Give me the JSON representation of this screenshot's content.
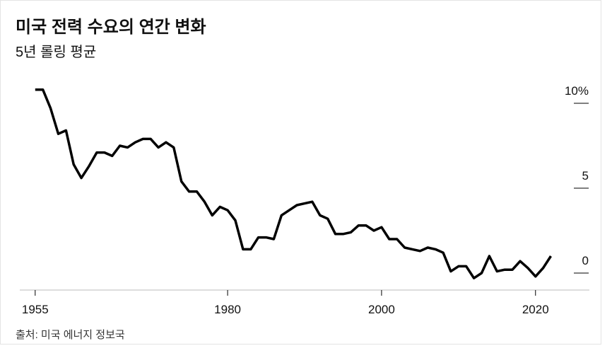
{
  "chart_data": {
    "type": "line",
    "title": "미국 전력 수요의 연간 변화",
    "subtitle": "5년 롤링 평균",
    "source": "출처: 미국 에너지 정보국",
    "color": "#000000",
    "x": [
      1955,
      1956,
      1957,
      1958,
      1959,
      1960,
      1961,
      1962,
      1963,
      1964,
      1965,
      1966,
      1967,
      1968,
      1969,
      1970,
      1971,
      1972,
      1973,
      1974,
      1975,
      1976,
      1977,
      1978,
      1979,
      1980,
      1981,
      1982,
      1983,
      1984,
      1985,
      1986,
      1987,
      1988,
      1989,
      1990,
      1991,
      1992,
      1993,
      1994,
      1995,
      1996,
      1997,
      1998,
      1999,
      2000,
      2001,
      2002,
      2003,
      2004,
      2005,
      2006,
      2007,
      2008,
      2009,
      2010,
      2011,
      2012,
      2013,
      2014,
      2015,
      2016,
      2017,
      2018,
      2019,
      2020,
      2021,
      2022
    ],
    "values": [
      10.8,
      10.8,
      9.7,
      8.2,
      8.4,
      6.4,
      5.6,
      6.3,
      7.1,
      7.1,
      6.9,
      7.5,
      7.4,
      7.7,
      7.9,
      7.9,
      7.4,
      7.7,
      7.4,
      5.4,
      4.8,
      4.8,
      4.2,
      3.4,
      3.9,
      3.7,
      3.1,
      1.4,
      1.4,
      2.1,
      2.1,
      2.0,
      3.4,
      3.7,
      4.0,
      4.1,
      4.2,
      3.4,
      3.2,
      2.3,
      2.3,
      2.4,
      2.8,
      2.8,
      2.5,
      2.7,
      2.0,
      2.0,
      1.5,
      1.4,
      1.3,
      1.5,
      1.4,
      1.2,
      0.1,
      0.4,
      0.4,
      -0.3,
      0.0,
      1.0,
      0.1,
      0.2,
      0.2,
      0.7,
      0.3,
      -0.2,
      0.3,
      1.0
    ],
    "xlim": [
      1953,
      2027
    ],
    "xticks": [
      1955,
      1980,
      2000,
      2020
    ],
    "ylim": [
      -1,
      11.5
    ],
    "yticks": [
      {
        "value": 10,
        "label": "10%"
      },
      5,
      0
    ]
  }
}
